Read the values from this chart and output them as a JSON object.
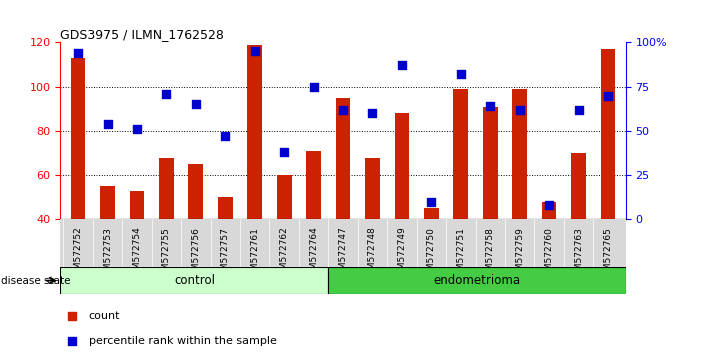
{
  "title": "GDS3975 / ILMN_1762528",
  "samples": [
    "GSM572752",
    "GSM572753",
    "GSM572754",
    "GSM572755",
    "GSM572756",
    "GSM572757",
    "GSM572761",
    "GSM572762",
    "GSM572764",
    "GSM572747",
    "GSM572748",
    "GSM572749",
    "GSM572750",
    "GSM572751",
    "GSM572758",
    "GSM572759",
    "GSM572760",
    "GSM572763",
    "GSM572765"
  ],
  "counts": [
    113,
    55,
    53,
    68,
    65,
    50,
    119,
    60,
    71,
    95,
    68,
    88,
    45,
    99,
    91,
    99,
    48,
    70,
    117
  ],
  "percentiles": [
    94,
    54,
    51,
    71,
    65,
    47,
    95,
    38,
    75,
    62,
    60,
    87,
    10,
    82,
    64,
    62,
    8,
    62,
    70
  ],
  "control_count": 9,
  "endometrioma_count": 10,
  "ylim_left": [
    40,
    120
  ],
  "ylim_right": [
    0,
    100
  ],
  "yticks_left": [
    40,
    60,
    80,
    100,
    120
  ],
  "yticks_right": [
    0,
    25,
    50,
    75,
    100
  ],
  "ytick_labels_right": [
    "0",
    "25",
    "50",
    "75",
    "100%"
  ],
  "bar_color": "#cc2200",
  "dot_color": "#0000cc",
  "control_color": "#ccffcc",
  "endometrioma_color": "#44cc44",
  "bar_width": 0.5,
  "dot_size": 30
}
